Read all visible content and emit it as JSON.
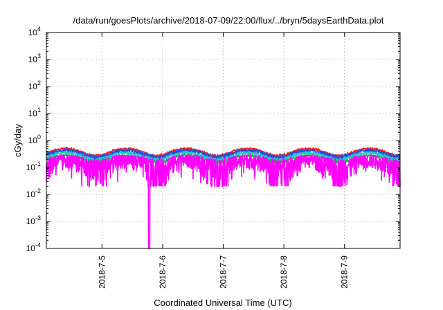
{
  "chart_data": {
    "type": "line",
    "title": "/data/run/goesPlots/archive/2018-07-09/22:00/flux/../bryn/5daysEarthData.plot",
    "xlabel": "Coordinated Universal Time (UTC)",
    "ylabel": "cGy/day",
    "yscale": "log",
    "ylim": [
      0.0001,
      10000
    ],
    "xlim": [
      "2018-07-04 02:00",
      "2018-07-09 22:00"
    ],
    "grid": true,
    "legend": "none",
    "x_ticks": [
      {
        "label": "2018-7-5",
        "day": 1.0
      },
      {
        "label": "2018-7-6",
        "day": 2.0
      },
      {
        "label": "2018-7-7",
        "day": 3.0
      },
      {
        "label": "2018-7-8",
        "day": 4.0
      },
      {
        "label": "2018-7-9",
        "day": 5.0
      }
    ],
    "y_ticks": [
      {
        "base": "10",
        "exp": "-4",
        "value": 0.0001
      },
      {
        "base": "10",
        "exp": "-3",
        "value": 0.001
      },
      {
        "base": "10",
        "exp": "-2",
        "value": 0.01
      },
      {
        "base": "10",
        "exp": "-1",
        "value": 0.1
      },
      {
        "base": "10",
        "exp": "0",
        "value": 1
      },
      {
        "base": "10",
        "exp": "1",
        "value": 10
      },
      {
        "base": "10",
        "exp": "2",
        "value": 100
      },
      {
        "base": "10",
        "exp": "3",
        "value": 1000
      },
      {
        "base": "10",
        "exp": "4",
        "value": 10000
      }
    ],
    "series": [
      {
        "color": "#ff1e1e",
        "base": 0.38,
        "amp": 0.12,
        "noise": 0.1
      },
      {
        "color": "#2b4bd8",
        "base": 0.33,
        "amp": 0.1,
        "noise": 0.14
      },
      {
        "color": "#1ec8d2",
        "base": 0.27,
        "amp": 0.08,
        "noise": 0.08
      },
      {
        "color": "#22b04a",
        "base": 0.22,
        "amp": 0.06,
        "noise": 0.05
      },
      {
        "color": "#ff00ff",
        "base": 0.15,
        "amp": 0.05,
        "noise": 0.22
      }
    ],
    "dropout": {
      "series_color": "#ff00ff",
      "day": 1.78,
      "value": 0.0001
    }
  }
}
